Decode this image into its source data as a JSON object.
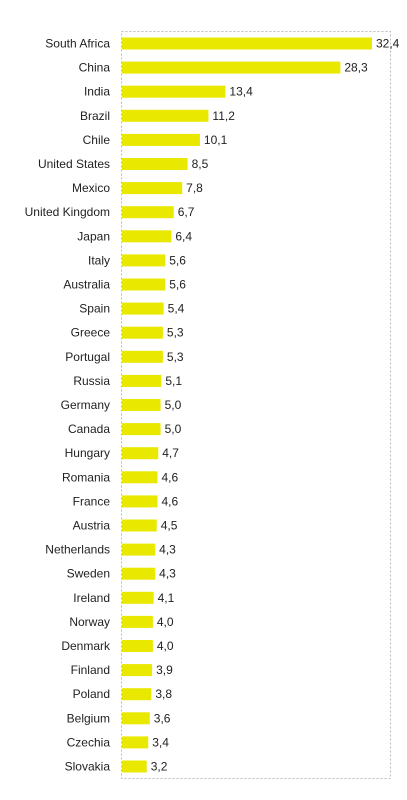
{
  "chart_data": {
    "type": "bar",
    "orientation": "horizontal",
    "categories": [
      "South Africa",
      "China",
      "India",
      "Brazil",
      "Chile",
      "United States",
      "Mexico",
      "United Kingdom",
      "Japan",
      "Italy",
      "Australia",
      "Spain",
      "Greece",
      "Portugal",
      "Russia",
      "Germany",
      "Canada",
      "Hungary",
      "Romania",
      "France",
      "Austria",
      "Netherlands",
      "Sweden",
      "Ireland",
      "Norway",
      "Denmark",
      "Finland",
      "Poland",
      "Belgium",
      "Czechia",
      "Slovakia"
    ],
    "values": [
      32.4,
      28.3,
      13.4,
      11.2,
      10.1,
      8.5,
      7.8,
      6.7,
      6.4,
      5.6,
      5.6,
      5.4,
      5.3,
      5.3,
      5.1,
      5.0,
      5.0,
      4.7,
      4.6,
      4.6,
      4.5,
      4.3,
      4.3,
      4.1,
      4.0,
      4.0,
      3.9,
      3.8,
      3.6,
      3.4,
      3.2
    ],
    "value_labels": [
      "32,4",
      "28,3",
      "13,4",
      "11,2",
      "10,1",
      "8,5",
      "7,8",
      "6,7",
      "6,4",
      "5,6",
      "5,6",
      "5,4",
      "5,3",
      "5,3",
      "5,1",
      "5,0",
      "5,0",
      "4,7",
      "4,6",
      "4,6",
      "4,5",
      "4,3",
      "4,3",
      "4,1",
      "4,0",
      "4,0",
      "3,9",
      "3,8",
      "3,6",
      "3,4",
      "3,2"
    ],
    "title": "",
    "xlabel": "",
    "ylabel": "",
    "xlim": [
      0,
      32.4
    ],
    "grid": false,
    "legend": "none",
    "colors": {
      "bar": "#e8e800",
      "frame": "#bbbbbb",
      "text": "#222222"
    }
  }
}
